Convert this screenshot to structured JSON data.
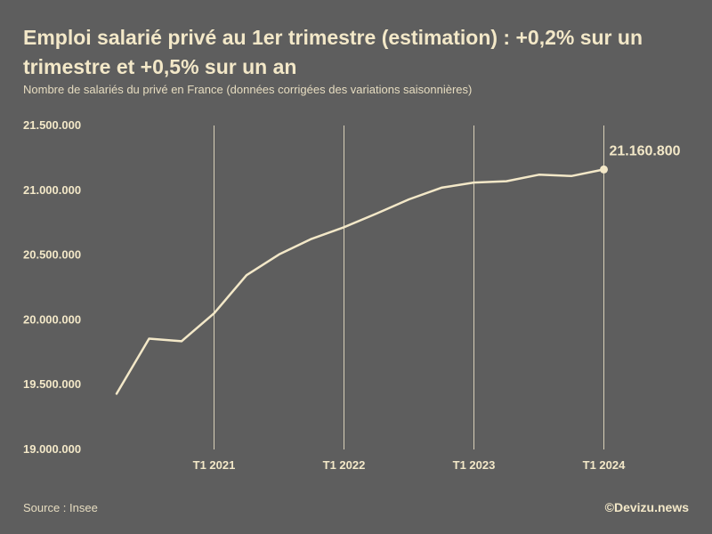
{
  "header": {
    "title": "Emploi salarié privé au 1er trimestre (estimation) : +0,2% sur un trimestre et +0,5% sur un an",
    "subtitle": "Nombre de salariés du privé en France (données corrigées des variations saisonnières)"
  },
  "footer": {
    "source": "Source : Insee",
    "credit": "©Devizu.news"
  },
  "colors": {
    "background": "#5e5e5e",
    "line": "#f3e8c8",
    "gridline": "#d8d0b8"
  },
  "chart_data": {
    "type": "line",
    "x_ticks": [
      "T1 2021",
      "T1 2022",
      "T1 2023",
      "T1 2024"
    ],
    "y_ticks": [
      "19.000.000",
      "19.500.000",
      "20.000.000",
      "20.500.000",
      "21.000.000",
      "21.500.000"
    ],
    "ylim": [
      19000000,
      21500000
    ],
    "grid": "vertical lines at T1 of each year",
    "last_value_label": "21.160.800",
    "series": [
      {
        "x": [
          "T2 2020",
          "T3 2020",
          "T4 2020",
          "T1 2021",
          "T2 2021",
          "T3 2021",
          "T4 2021",
          "T1 2022",
          "T2 2022",
          "T3 2022",
          "T4 2022",
          "T1 2023",
          "T2 2023",
          "T3 2023",
          "T4 2023",
          "T1 2024"
        ],
        "values": [
          19430000,
          19855000,
          19835000,
          20050000,
          20345000,
          20505000,
          20625000,
          20715000,
          20820000,
          20930000,
          21020000,
          21060000,
          21070000,
          21120000,
          21110000,
          21160800
        ]
      }
    ]
  }
}
